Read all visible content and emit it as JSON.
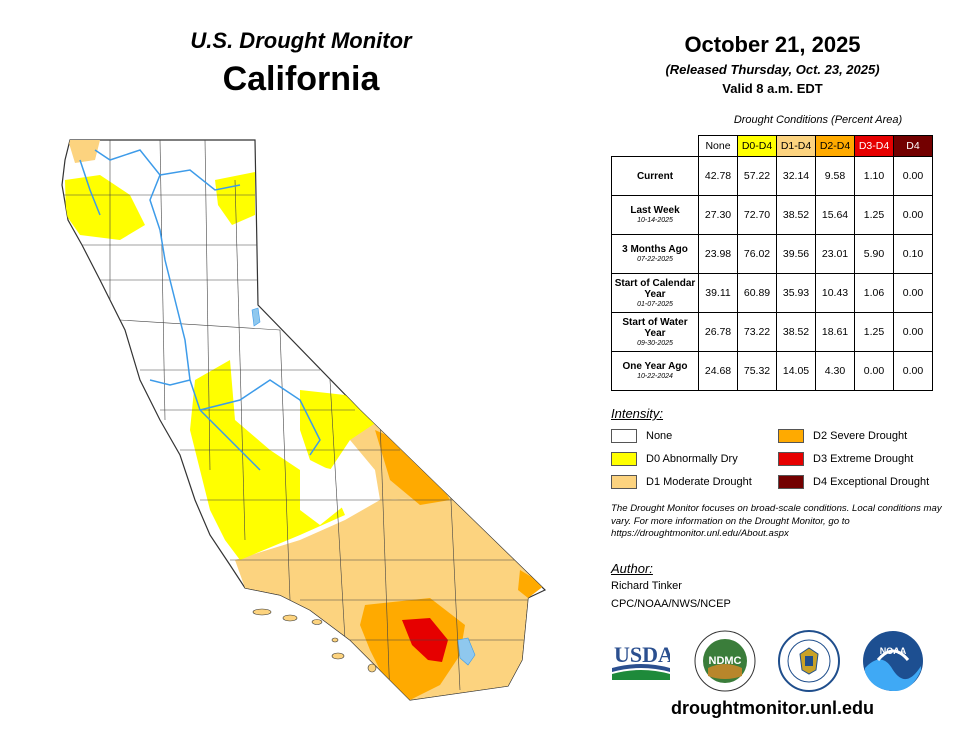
{
  "header": {
    "title": "U.S. Drought Monitor",
    "state": "California",
    "date": "October 21, 2025",
    "released": "(Released Thursday, Oct. 23, 2025)",
    "valid": "Valid 8 a.m. EDT"
  },
  "table": {
    "caption": "Drought Conditions (Percent Area)",
    "columns": [
      "None",
      "D0-D4",
      "D1-D4",
      "D2-D4",
      "D3-D4",
      "D4"
    ],
    "column_colors": [
      "#ffffff",
      "#ffff00",
      "#fcd37f",
      "#ffaa00",
      "#e60000",
      "#730000"
    ],
    "column_text_colors": [
      "#000000",
      "#000000",
      "#000000",
      "#000000",
      "#ffffff",
      "#ffffff"
    ],
    "rows": [
      {
        "label": "Current",
        "sub": "",
        "values": [
          "42.78",
          "57.22",
          "32.14",
          "9.58",
          "1.10",
          "0.00"
        ]
      },
      {
        "label": "Last Week",
        "sub": "10-14-2025",
        "values": [
          "27.30",
          "72.70",
          "38.52",
          "15.64",
          "1.25",
          "0.00"
        ]
      },
      {
        "label": "3 Months Ago",
        "sub": "07-22-2025",
        "values": [
          "23.98",
          "76.02",
          "39.56",
          "23.01",
          "5.90",
          "0.10"
        ]
      },
      {
        "label": "Start of Calendar Year",
        "sub": "01-07-2025",
        "values": [
          "39.11",
          "60.89",
          "35.93",
          "10.43",
          "1.06",
          "0.00"
        ]
      },
      {
        "label": "Start of Water Year",
        "sub": "09-30-2025",
        "values": [
          "26.78",
          "73.22",
          "38.52",
          "18.61",
          "1.25",
          "0.00"
        ]
      },
      {
        "label": "One Year Ago",
        "sub": "10-22-2024",
        "values": [
          "24.68",
          "75.32",
          "14.05",
          "4.30",
          "0.00",
          "0.00"
        ]
      }
    ]
  },
  "legend": {
    "heading": "Intensity:",
    "items": [
      {
        "label": "None",
        "color": "#ffffff"
      },
      {
        "label": "D0 Abnormally Dry",
        "color": "#ffff00"
      },
      {
        "label": "D1 Moderate Drought",
        "color": "#fcd37f"
      },
      {
        "label": "D2 Severe Drought",
        "color": "#ffaa00"
      },
      {
        "label": "D3 Extreme Drought",
        "color": "#e60000"
      },
      {
        "label": "D4 Exceptional Drought",
        "color": "#730000"
      }
    ]
  },
  "note": "The Drought Monitor focuses on broad-scale conditions. Local conditions may vary. For more information on the Drought Monitor, go to https://droughtmonitor.unl.edu/About.aspx",
  "author": {
    "heading": "Author:",
    "name": "Richard Tinker",
    "org": "CPC/NOAA/NWS/NCEP"
  },
  "logos": {
    "usda": "USDA",
    "ndmc": "NDMC",
    "noaa": "NOAA",
    "icons": [
      "usda-logo",
      "ndmc-logo",
      "commerce-seal",
      "noaa-logo"
    ]
  },
  "website": "droughtmonitor.unl.edu",
  "map": {
    "river_color": "#3d9be9",
    "lake_color": "#8fc8ee"
  }
}
